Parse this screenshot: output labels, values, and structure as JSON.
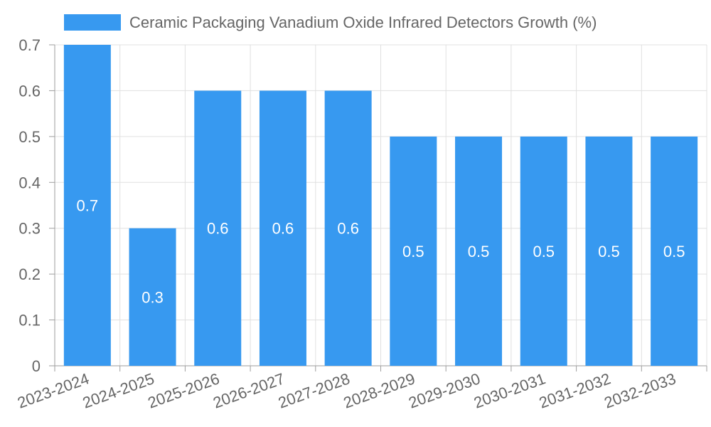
{
  "chart_data": {
    "type": "bar",
    "title": "",
    "xlabel": "",
    "ylabel": "",
    "legend": {
      "label": "Ceramic Packaging Vanadium Oxide Infrared Detectors Growth (%)",
      "position": "top"
    },
    "categories": [
      "2023-2024",
      "2024-2025",
      "2025-2026",
      "2026-2027",
      "2027-2028",
      "2028-2029",
      "2029-2030",
      "2030-2031",
      "2031-2032",
      "2032-2033"
    ],
    "series": [
      {
        "name": "Ceramic Packaging Vanadium Oxide Infrared Detectors Growth (%)",
        "values": [
          0.7,
          0.3,
          0.6,
          0.6,
          0.6,
          0.5,
          0.5,
          0.5,
          0.5,
          0.5
        ]
      }
    ],
    "value_labels": [
      "0.7",
      "0.3",
      "0.6",
      "0.6",
      "0.6",
      "0.5",
      "0.5",
      "0.5",
      "0.5",
      "0.5"
    ],
    "ylim": [
      0,
      0.7
    ],
    "yticks": [
      0,
      0.1,
      0.2,
      0.3,
      0.4,
      0.5,
      0.6,
      0.7
    ],
    "ytick_labels": [
      "0",
      "0.1",
      "0.2",
      "0.3",
      "0.4",
      "0.5",
      "0.6",
      "0.7"
    ],
    "grid": true,
    "colors": {
      "bar": "#3799f0",
      "grid": "#e0e0e0",
      "axis": "#9e9e9e",
      "text": "#666666",
      "label": "#ffffff"
    }
  }
}
